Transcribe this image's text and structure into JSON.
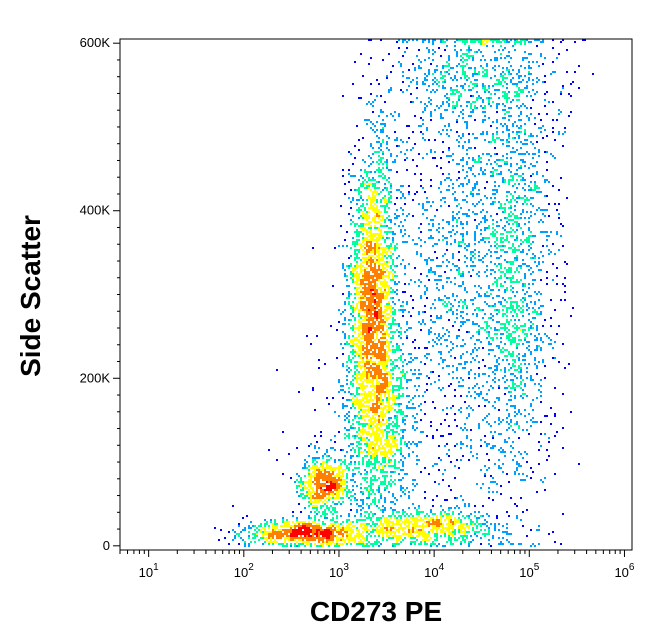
{
  "chart_data": {
    "type": "scatter",
    "subtype": "flow-cytometry-density-dot-plot",
    "xlabel": "CD273 PE",
    "ylabel": "Side Scatter",
    "x_scale": "log",
    "xlim": [
      5,
      1200000
    ],
    "ylim": [
      -5000,
      605000
    ],
    "x_ticks": [
      {
        "base": "10",
        "exp": "1",
        "value": 10
      },
      {
        "base": "10",
        "exp": "2",
        "value": 100
      },
      {
        "base": "10",
        "exp": "3",
        "value": 1000
      },
      {
        "base": "10",
        "exp": "4",
        "value": 10000
      },
      {
        "base": "10",
        "exp": "5",
        "value": 100000
      },
      {
        "base": "10",
        "exp": "6",
        "value": 1000000
      }
    ],
    "y_ticks": [
      {
        "label": "0",
        "value": 0
      },
      {
        "label": "200K",
        "value": 200000
      },
      {
        "label": "400K",
        "value": 400000
      },
      {
        "label": "600K",
        "value": 600000
      }
    ],
    "grid": false,
    "legend": "none",
    "color_scale": [
      "#0000ff",
      "#00a0ff",
      "#00ffa0",
      "#ffff00",
      "#ff8000",
      "#ff0000"
    ],
    "populations": [
      {
        "x_log10_mean": 3.35,
        "y_mean": 300000,
        "x_log10_sd": 0.13,
        "y_sd": 90000,
        "count": 2600,
        "corr": 0.15
      },
      {
        "x_log10_mean": 3.45,
        "y_mean": 150000,
        "x_log10_sd": 0.16,
        "y_sd": 60000,
        "count": 1100,
        "corr": 0.1
      },
      {
        "x_log10_mean": 2.85,
        "y_mean": 75000,
        "x_log10_sd": 0.13,
        "y_sd": 17000,
        "count": 650,
        "corr": 0
      },
      {
        "x_log10_mean": 2.7,
        "y_mean": 15000,
        "x_log10_sd": 0.35,
        "y_sd": 8000,
        "count": 950,
        "corr": 0
      },
      {
        "x_log10_mean": 3.9,
        "y_mean": 22000,
        "x_log10_sd": 0.38,
        "y_sd": 11000,
        "count": 750,
        "corr": 0
      },
      {
        "x_log10_mean": 4.85,
        "y_mean": 330000,
        "x_log10_sd": 0.22,
        "y_sd": 140000,
        "count": 1500,
        "corr": 0
      },
      {
        "x_log10_mean": 4.2,
        "y_mean": 330000,
        "x_log10_sd": 0.35,
        "y_sd": 150000,
        "count": 1300,
        "corr": 0
      },
      {
        "x_log10_mean": 4.4,
        "y_mean": 560000,
        "x_log10_sd": 0.45,
        "y_sd": 35000,
        "count": 500,
        "corr": 0
      },
      {
        "x_log10_mean": 3.3,
        "y_mean": 130000,
        "x_log10_sd": 0.5,
        "y_sd": 80000,
        "count": 180,
        "corr": 0
      }
    ]
  }
}
